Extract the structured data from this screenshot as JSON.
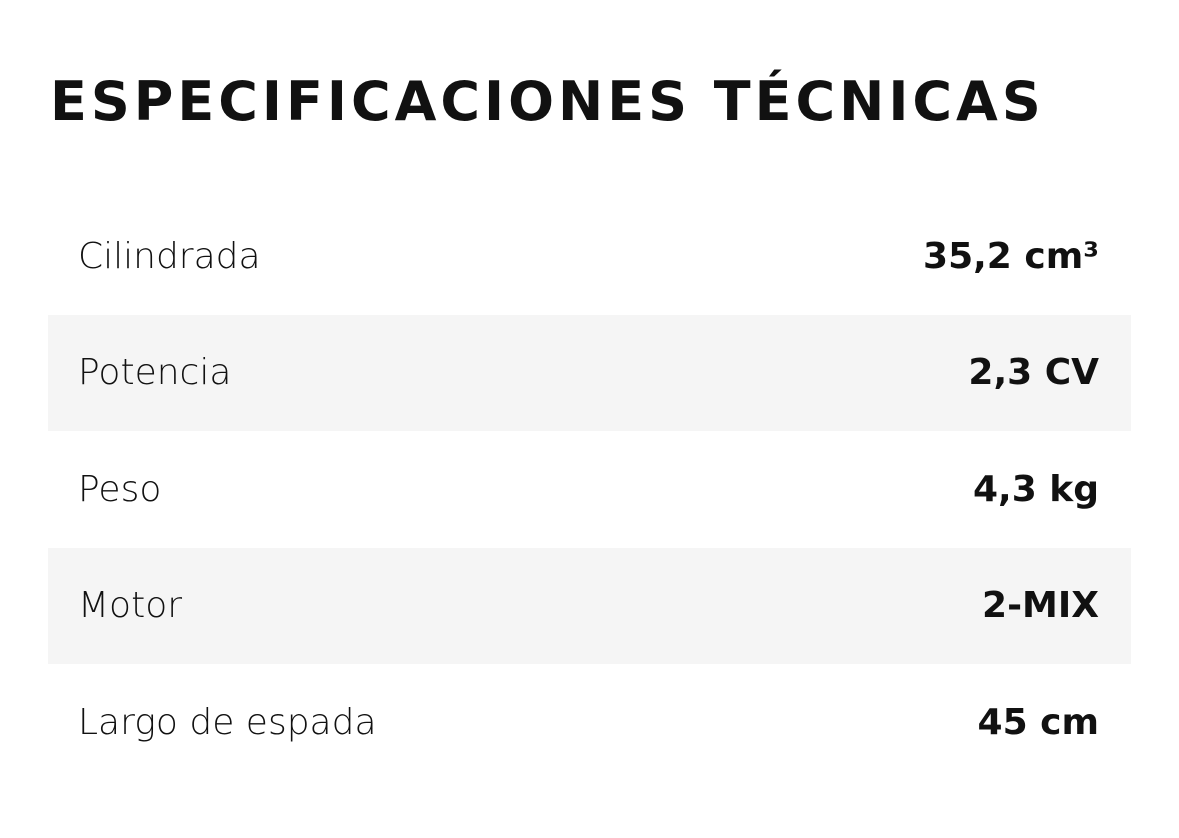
{
  "header": {
    "title": "ESPECIFICACIONES TÉCNICAS"
  },
  "table": {
    "rows": [
      [
        "Cilindrada",
        "35,2 cm³"
      ],
      [
        "Potencia",
        "2,3 CV"
      ],
      [
        "Peso",
        "4,3 kg"
      ],
      [
        "Motor",
        "2-MIX"
      ],
      [
        "Largo de espada",
        "45 cm"
      ]
    ]
  }
}
